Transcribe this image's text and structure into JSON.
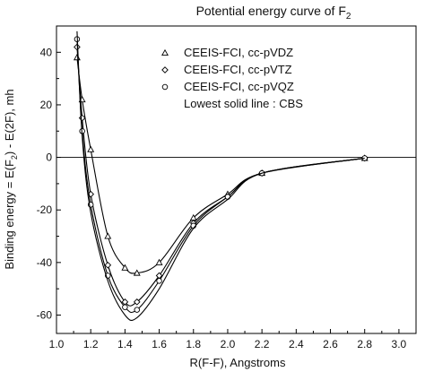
{
  "chart_data": {
    "type": "line",
    "title": {
      "main": "Potential energy curve of F",
      "sub": "2"
    },
    "xlabel": "R(F-F), Angstroms",
    "ylabel": {
      "a": "Binding energy = E(F",
      "sub": "2",
      "b": ") - E(2F), mh"
    },
    "xlim": [
      1.0,
      3.1
    ],
    "ylim": [
      -67,
      50
    ],
    "xticks": [
      1.0,
      1.2,
      1.4,
      1.6,
      1.8,
      2.0,
      2.2,
      2.4,
      2.6,
      2.8,
      3.0
    ],
    "xtick_labels": [
      "1.0",
      "1.2",
      "1.4",
      "1.6",
      "1.8",
      "2.0",
      "2.2",
      "2.4",
      "2.6",
      "2.8",
      "3.0"
    ],
    "yticks": [
      -60,
      -40,
      -20,
      0,
      20,
      40
    ],
    "ytick_labels": [
      "-60",
      "-40",
      "-20",
      "0",
      "20",
      "40"
    ],
    "zero_line": true,
    "grid": false,
    "legend": {
      "position": "top-right",
      "entries": [
        {
          "marker": "triangle",
          "label": "CEEIS-FCI, cc-pVDZ"
        },
        {
          "marker": "diamond",
          "label": "CEEIS-FCI, cc-pVTZ"
        },
        {
          "marker": "circle",
          "label": "CEEIS-FCI, cc-pVQZ"
        }
      ],
      "note": "Lowest solid line  :  CBS"
    },
    "series": [
      {
        "marker": "triangle",
        "x": [
          1.12,
          1.15,
          1.2,
          1.3,
          1.4,
          1.47,
          1.6,
          1.8,
          2.0,
          2.2,
          2.8
        ],
        "y": [
          38,
          22,
          3,
          -30,
          -42,
          -44,
          -40,
          -23,
          -14,
          -6,
          -0.3
        ]
      },
      {
        "marker": "diamond",
        "x": [
          1.12,
          1.15,
          1.2,
          1.3,
          1.4,
          1.47,
          1.6,
          1.8,
          2.0,
          2.2,
          2.8
        ],
        "y": [
          42,
          15,
          -14,
          -41,
          -55,
          -55,
          -45,
          -25,
          -15,
          -6,
          -0.3
        ]
      },
      {
        "marker": "circle",
        "x": [
          1.12,
          1.15,
          1.2,
          1.3,
          1.4,
          1.47,
          1.6,
          1.8,
          2.0,
          2.2,
          2.8
        ],
        "y": [
          45,
          10,
          -18,
          -45,
          -57,
          -58,
          -47,
          -26,
          -15,
          -6,
          -0.3
        ]
      },
      {
        "marker": "none",
        "x": [
          1.12,
          1.15,
          1.2,
          1.3,
          1.4,
          1.47,
          1.6,
          1.8,
          2.0,
          2.2,
          2.8
        ],
        "y": [
          48,
          8,
          -21,
          -47,
          -60,
          -61,
          -50,
          -27,
          -16,
          -6,
          -0.3
        ]
      }
    ]
  }
}
